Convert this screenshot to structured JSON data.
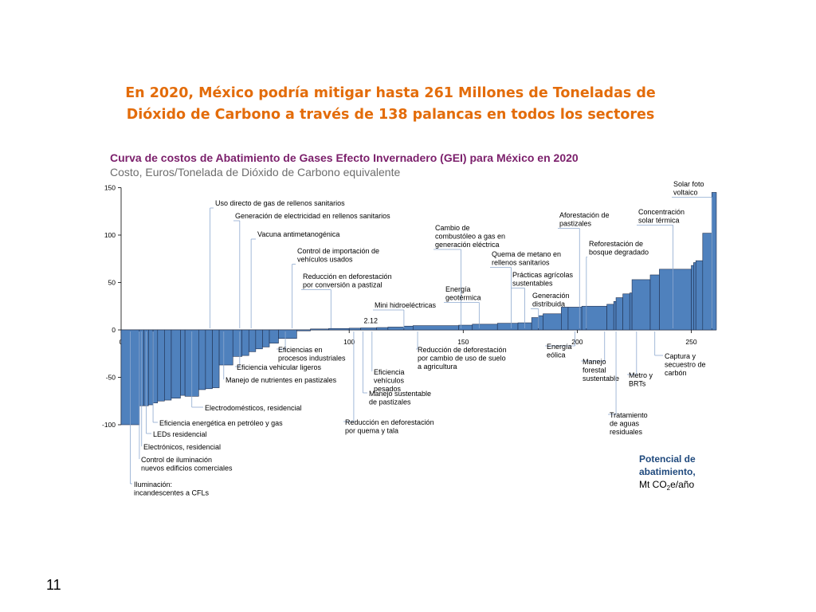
{
  "slide": {
    "title": "En 2020, México podría mitigar hasta 261 Millones de Toneladas de Dióxido de Carbono a través de 138 palancas en todos los sectores",
    "page_number": "11"
  },
  "chart_data": {
    "type": "bar",
    "title": "Curva de costos de Abatimiento de Gases Efecto Invernadero (GEI) para México en 2020",
    "subtitle": "Costo, Euros/Tonelada de Dióxido de Carbono equivalente",
    "xlabel": "Potencial de abatimiento, Mt CO2e/año",
    "xlabel_lines": [
      "Potencial de",
      "abatimiento,"
    ],
    "unit_parts": [
      "Mt CO",
      "2",
      "e/año"
    ],
    "x_ticks": [
      0,
      50,
      100,
      150,
      200,
      250
    ],
    "y_ticks": [
      150,
      100,
      50,
      0,
      -50,
      -100
    ],
    "xlim": [
      0,
      261
    ],
    "ylim": [
      -100,
      150
    ],
    "annotation": "2.12",
    "bar_color": "#4F81BD",
    "bars": [
      [
        0,
        8,
        -100
      ],
      [
        8,
        10,
        -80
      ],
      [
        10,
        12,
        -80
      ],
      [
        12,
        14,
        -79
      ],
      [
        14,
        16,
        -77
      ],
      [
        16,
        19,
        -75
      ],
      [
        19,
        22,
        -74
      ],
      [
        22,
        26,
        -72
      ],
      [
        26,
        28,
        -69
      ],
      [
        28,
        34,
        -70
      ],
      [
        34,
        37,
        -63
      ],
      [
        37,
        40,
        -62
      ],
      [
        40,
        43,
        -61
      ],
      [
        43,
        49,
        -37
      ],
      [
        49,
        53,
        -28
      ],
      [
        53,
        56,
        -27
      ],
      [
        56,
        59,
        -23
      ],
      [
        59,
        62,
        -20
      ],
      [
        62,
        65,
        -18
      ],
      [
        65,
        69,
        -14
      ],
      [
        69,
        77,
        -9
      ],
      [
        77,
        83,
        -1
      ],
      [
        83,
        91,
        1
      ],
      [
        91,
        100,
        1.5
      ],
      [
        100,
        105,
        1.8
      ],
      [
        105,
        112,
        2.12
      ],
      [
        112,
        117,
        2.5
      ],
      [
        117,
        124,
        3
      ],
      [
        124,
        128,
        4
      ],
      [
        128,
        148,
        4.5
      ],
      [
        148,
        154,
        5
      ],
      [
        154,
        165,
        6
      ],
      [
        165,
        174,
        7
      ],
      [
        174,
        180,
        7.5
      ],
      [
        180,
        183,
        13
      ],
      [
        183,
        185,
        15
      ],
      [
        185,
        193,
        17
      ],
      [
        193,
        196,
        24
      ],
      [
        196,
        202,
        24
      ],
      [
        202,
        204,
        25
      ],
      [
        204,
        213,
        25
      ],
      [
        213,
        216,
        27
      ],
      [
        216,
        217,
        30
      ],
      [
        217,
        220,
        34
      ],
      [
        220,
        223,
        38
      ],
      [
        223,
        224,
        39
      ],
      [
        224,
        232,
        53
      ],
      [
        232,
        236,
        58
      ],
      [
        236,
        250,
        64
      ],
      [
        250,
        251,
        68
      ],
      [
        251,
        252,
        71
      ],
      [
        252,
        255,
        73
      ],
      [
        255,
        259,
        102
      ],
      [
        259,
        261,
        145
      ]
    ],
    "annotations": [
      {
        "lines": [
          "Uso directo de gas de rellenos sanitarios"
        ],
        "x": 39
      },
      {
        "lines": [
          "Generación de electricidad en rellenos sanitarios"
        ],
        "x": 52
      },
      {
        "lines": [
          "Vacuna antimetanogénica"
        ],
        "x": 57
      },
      {
        "lines": [
          "Control de importación de",
          "vehículos usados"
        ],
        "x": 75
      },
      {
        "lines": [
          "Reducción en deforestación",
          "por conversión a pastizal"
        ],
        "x": 92
      },
      {
        "lines": [
          "Mini hidroeléctricas"
        ],
        "x": 124
      },
      {
        "lines": [
          "Cambio de",
          "combustóleo a gas en",
          "generación eléctrica"
        ],
        "x": 149
      },
      {
        "lines": [
          "Energía",
          "geotérmica"
        ],
        "x": 157
      },
      {
        "lines": [
          "Quema de metano en",
          "rellenos sanitarios"
        ],
        "x": 171
      },
      {
        "lines": [
          "Prácticas agrícolas",
          "sustentables"
        ],
        "x": 177
      },
      {
        "lines": [
          "Generación",
          "distribuida"
        ],
        "x": 183
      },
      {
        "lines": [
          "Aforestación de",
          "pastizales"
        ],
        "x": 201
      },
      {
        "lines": [
          "Reforestación de",
          "bosque degradado"
        ],
        "x": 204
      },
      {
        "lines": [
          "Concentración",
          "solar térmica"
        ],
        "x": 242
      },
      {
        "lines": [
          "Solar foto",
          "voltaico"
        ],
        "x": 259
      },
      {
        "lines": [
          "Eficiencias en",
          "procesos industriales"
        ],
        "x": 72
      },
      {
        "lines": [
          "Eficiencia vehicular ligeros"
        ],
        "x": 52
      },
      {
        "lines": [
          "Manejo de nutrientes en pastizales"
        ],
        "x": 45
      },
      {
        "lines": [
          "Electrodomésticos, residencial"
        ],
        "x": 31
      },
      {
        "lines": [
          "Eficiencia energética en petróleo y gas"
        ],
        "x": 14
      },
      {
        "lines": [
          "LEDs residencial"
        ],
        "x": 11
      },
      {
        "lines": [
          "Electrónicos, residencial"
        ],
        "x": 9
      },
      {
        "lines": [
          "Control de iluminación",
          "nuevos edificios comerciales"
        ],
        "x": 8
      },
      {
        "lines": [
          "Iluminación:",
          "incandescentes a CFLs"
        ],
        "x": 4
      },
      {
        "lines": [
          "Reducción en deforestación",
          "por quema y tala"
        ],
        "x": 102
      },
      {
        "lines": [
          "Manejo sustentable",
          "de pastizales"
        ],
        "x": 106
      },
      {
        "lines": [
          "Eficiencia",
          "vehículos",
          "pesados"
        ],
        "x": 110
      },
      {
        "lines": [
          "Reducción de deforestación",
          "por cambio de uso de suelo",
          "a agricultura"
        ],
        "x": 130
      },
      {
        "lines": [
          "Energía",
          "eólica"
        ],
        "x": 199
      },
      {
        "lines": [
          "Manejo",
          "forestal",
          "sustentable"
        ],
        "x": 212
      },
      {
        "lines": [
          "Tratamiento",
          "de aguas",
          "residuales"
        ],
        "x": 217
      },
      {
        "lines": [
          "Metro y",
          "BRTs"
        ],
        "x": 226
      },
      {
        "lines": [
          "Captura y",
          "secuestro de",
          "carbón"
        ],
        "x": 234
      }
    ]
  }
}
